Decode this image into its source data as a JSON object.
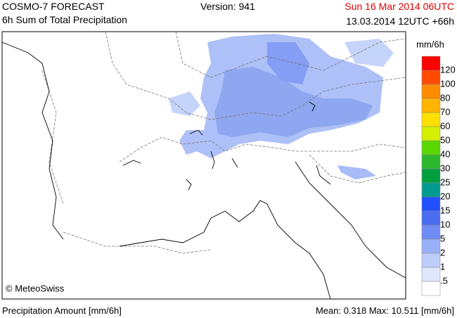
{
  "header": {
    "model": "COSMO-7 FORECAST",
    "product": "6h Sum of Total Precipitation",
    "version": "Version: 941",
    "valid_time": "Sun 16 Mar 2014 06UTC",
    "run_time": "13.03.2014 12UTC +66h"
  },
  "map": {
    "copyright": "© MeteoSwiss"
  },
  "legend": {
    "unit": "mm/6h",
    "labels": [
      "120",
      "100",
      "80",
      "70",
      "60",
      "50",
      "40",
      "30",
      "25",
      "20",
      "15",
      "10",
      "5",
      "2",
      "1",
      ".5"
    ],
    "colors": [
      "#ff0000",
      "#ff4a00",
      "#ff8c00",
      "#ffb400",
      "#ffe000",
      "#d4f000",
      "#5ad800",
      "#2cb82c",
      "#00a040",
      "#009a90",
      "#2050ff",
      "#4a6cf0",
      "#6f8cf4",
      "#98b0f8",
      "#bccdfb",
      "#dfe7fd",
      "#ffffff"
    ]
  },
  "footer": {
    "left": "Precipitation Amount [mm/6h]",
    "right": "Mean:  0.318 Max:  10.511 [mm/6h]"
  }
}
